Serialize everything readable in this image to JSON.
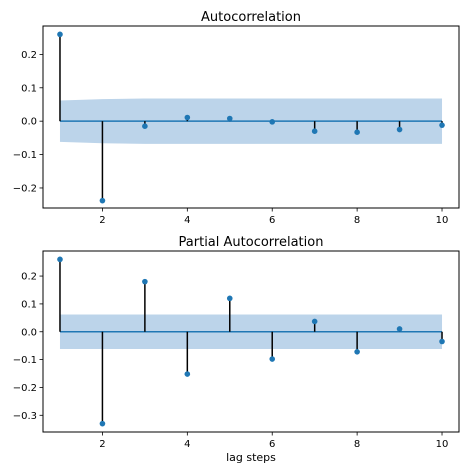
{
  "colors": {
    "series": "#1f77b4",
    "confidence_band": "#bcd4ea",
    "stem": "#000000",
    "axes": "#000000"
  },
  "chart_data": [
    {
      "type": "stem",
      "title": "Autocorrelation",
      "xlabel": "",
      "ylabel": "",
      "x": [
        1,
        2,
        3,
        4,
        5,
        6,
        7,
        8,
        9,
        10
      ],
      "values": [
        0.26,
        -0.238,
        -0.015,
        0.011,
        0.008,
        -0.002,
        -0.03,
        -0.033,
        -0.025,
        -0.012
      ],
      "xlim": [
        0.6,
        10.4
      ],
      "ylim": [
        -0.26,
        0.285
      ],
      "xticks": [
        2,
        4,
        6,
        8,
        10
      ],
      "xtick_labels": [
        "2",
        "4",
        "6",
        "8",
        "10"
      ],
      "yticks": [
        0.2,
        0.1,
        0.0,
        -0.1,
        -0.2
      ],
      "ytick_labels": [
        "0.2",
        "0.1",
        "0.0",
        "−0.1",
        "−0.2"
      ],
      "confidence_band": {
        "x": [
          1,
          2,
          3,
          4,
          5,
          6,
          7,
          8,
          9,
          10
        ],
        "upper": [
          0.062,
          0.066,
          0.068,
          0.068,
          0.068,
          0.068,
          0.068,
          0.068,
          0.068,
          0.068
        ],
        "lower": [
          -0.062,
          -0.066,
          -0.068,
          -0.068,
          -0.068,
          -0.068,
          -0.068,
          -0.068,
          -0.068,
          -0.068
        ]
      }
    },
    {
      "type": "stem",
      "title": "Partial Autocorrelation",
      "xlabel": "lag steps",
      "ylabel": "",
      "x": [
        1,
        2,
        3,
        4,
        5,
        6,
        7,
        8,
        9,
        10
      ],
      "values": [
        0.26,
        -0.33,
        0.18,
        -0.152,
        0.12,
        -0.098,
        0.037,
        -0.072,
        0.01,
        -0.035
      ],
      "xlim": [
        0.6,
        10.4
      ],
      "ylim": [
        -0.36,
        0.29
      ],
      "xticks": [
        2,
        4,
        6,
        8,
        10
      ],
      "xtick_labels": [
        "2",
        "4",
        "6",
        "8",
        "10"
      ],
      "yticks": [
        0.2,
        0.1,
        0.0,
        -0.1,
        -0.2,
        -0.3
      ],
      "ytick_labels": [
        "0.2",
        "0.1",
        "0.0",
        "−0.1",
        "−0.2",
        "−0.3"
      ],
      "confidence_band": {
        "x": [
          1,
          10
        ],
        "upper": [
          0.062,
          0.062
        ],
        "lower": [
          -0.062,
          -0.062
        ]
      }
    }
  ]
}
